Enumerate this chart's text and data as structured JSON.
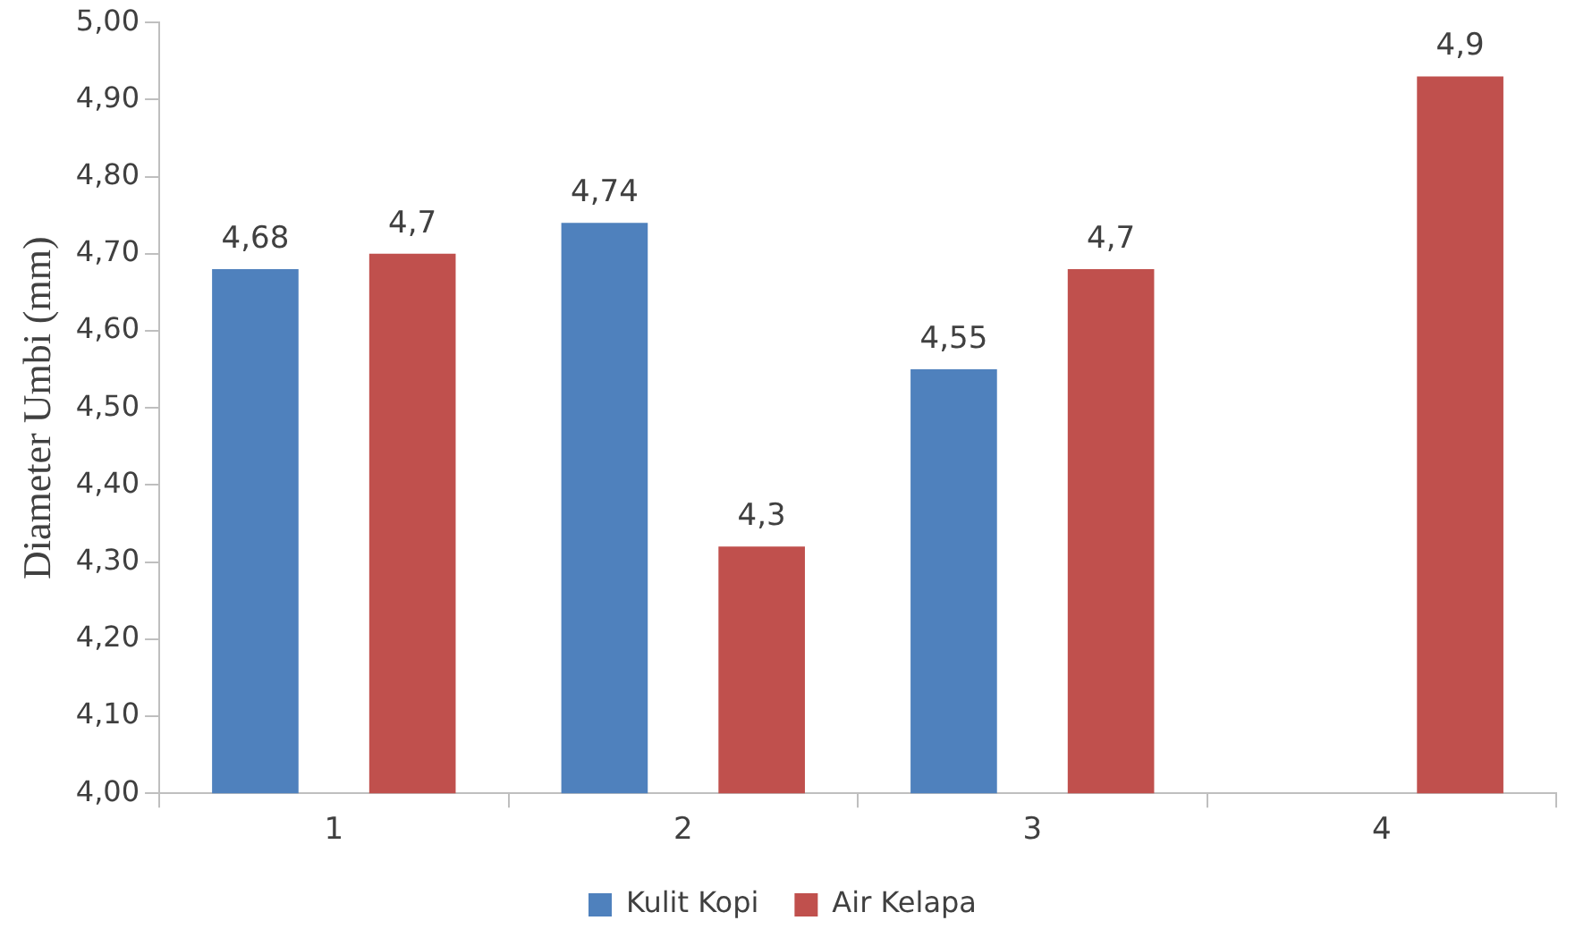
{
  "chart_data": {
    "type": "bar",
    "ylabel": "Diameter Umbi (mm)",
    "categories": [
      "1",
      "2",
      "3",
      "4"
    ],
    "series": [
      {
        "name": "Kulit Kopi",
        "color": "#4f81bd",
        "values": [
          4.68,
          4.74,
          4.55,
          null
        ],
        "value_labels": [
          "4,68",
          "4,74",
          "4,55",
          null
        ]
      },
      {
        "name": "Air Kelapa",
        "color": "#c0504d",
        "values": [
          4.7,
          4.32,
          4.68,
          4.93
        ],
        "value_labels": [
          "4,7",
          "4,3",
          "4,7",
          "4,9"
        ]
      }
    ],
    "ylim": [
      4,
      5
    ],
    "yticks": [
      {
        "value": 4,
        "label": "4,00"
      },
      {
        "value": 4.1,
        "label": "4,10"
      },
      {
        "value": 4.2,
        "label": "4,20"
      },
      {
        "value": 4.3,
        "label": "4,30"
      },
      {
        "value": 4.4,
        "label": "4,40"
      },
      {
        "value": 4.5,
        "label": "4,50"
      },
      {
        "value": 4.6,
        "label": "4,60"
      },
      {
        "value": 4.7,
        "label": "4,70"
      },
      {
        "value": 4.8,
        "label": "4,80"
      },
      {
        "value": 4.9,
        "label": "4,90"
      },
      {
        "value": 5,
        "label": "5,00"
      }
    ],
    "grid": false,
    "legend": "bottom"
  }
}
